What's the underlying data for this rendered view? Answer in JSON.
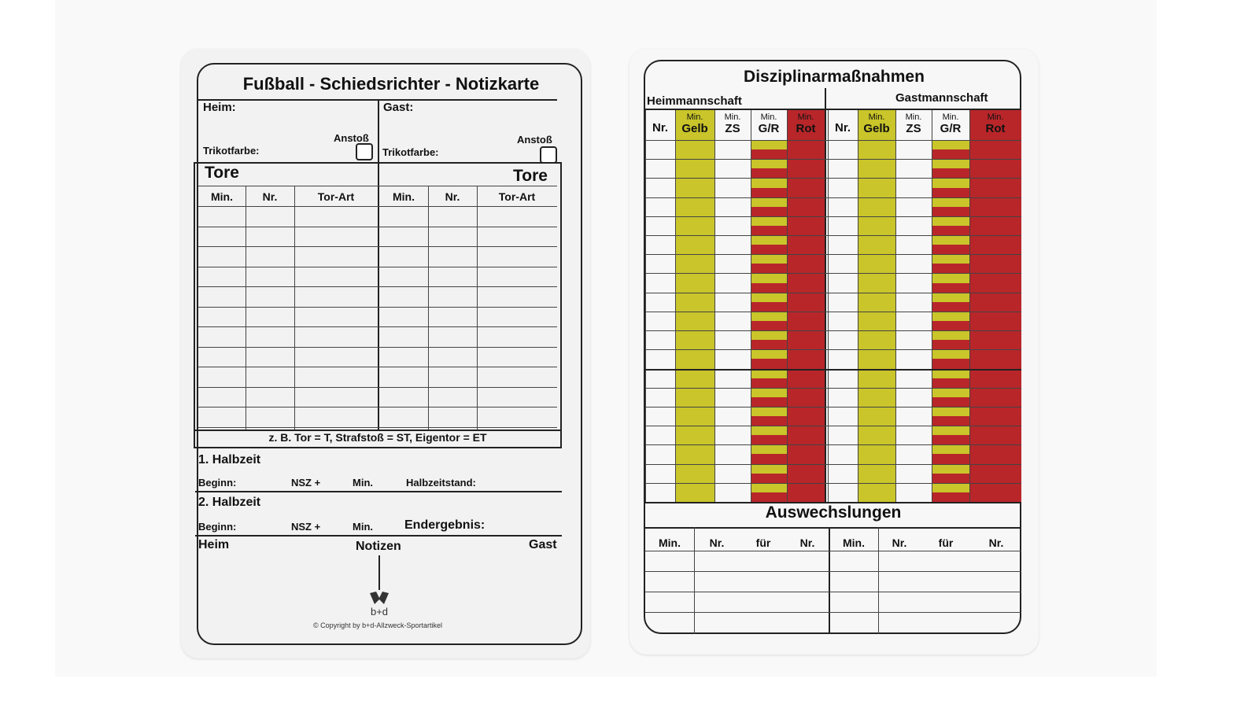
{
  "left_card": {
    "title": "Fußball - Schiedsrichter - Notizkarte",
    "home_label": "Heim:",
    "away_label": "Gast:",
    "kickoff_label": "Anstoß",
    "jersey_label": "Trikotfarbe:",
    "goals_label": "Tore",
    "goal_columns": [
      "Min.",
      "Nr.",
      "Tor-Art"
    ],
    "goal_legend": "z. B. Tor = T, Strafstoß = ST, Eigentor = ET",
    "first_half": "1. Halbzeit",
    "second_half": "2. Halbzeit",
    "start_label": "Beginn:",
    "extra_time_label": "NSZ +",
    "min_label": "Min.",
    "halftime_score_label": "Halbzeitstand:",
    "final_score_label": "Endergebnis:",
    "notes_home": "Heim",
    "notes_label": "Notizen",
    "notes_away": "Gast",
    "logo_text": "b+d",
    "copyright": "© Copyright by b+d-Allzweck-Sportartikel"
  },
  "right_card": {
    "title": "Disziplinarmaßnahmen",
    "home_team": "Heimmannschaft",
    "away_team": "Gastmannschaft",
    "min_prefix": "Min.",
    "columns": [
      "Nr.",
      "Gelb",
      "ZS",
      "G/R",
      "Rot"
    ],
    "substitutions_title": "Auswechslungen",
    "sub_columns": [
      "Min.",
      "Nr.",
      "für",
      "Nr."
    ],
    "colors": {
      "yellow": "#c9c52a",
      "red": "#b8262a"
    }
  }
}
